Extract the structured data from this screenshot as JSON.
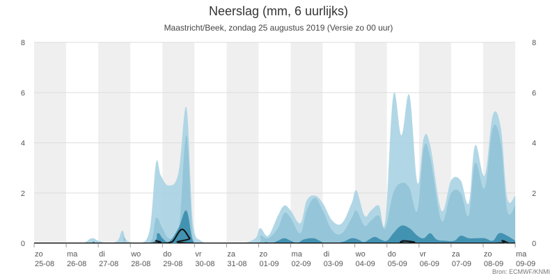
{
  "title": "Neerslag (mm, 6 uurlijks)",
  "subtitle": "Maastricht/Beek, zondag 25 augustus 2019 (Versie zo 00 uur)",
  "credit": "Bron: ECMWF/KNMI",
  "colors": {
    "band_outer": "#a9d3e3",
    "band_mid": "#8cbfd3",
    "band_inner": "#3d8fb0",
    "median_line": "#111111",
    "weekend_shade": "#efefef",
    "grid": "#dddddd"
  },
  "chart_data": {
    "type": "area",
    "title": "Neerslag (mm, 6 uurlijks)",
    "ylim": [
      0,
      8
    ],
    "yticks": [
      0,
      2,
      4,
      6,
      8
    ],
    "grid": true,
    "x_labels": [
      {
        "day": "zo",
        "date": "25-08"
      },
      {
        "day": "ma",
        "date": "26-08"
      },
      {
        "day": "di",
        "date": "27-08"
      },
      {
        "day": "wo",
        "date": "28-08"
      },
      {
        "day": "do",
        "date": "29-08"
      },
      {
        "day": "vr",
        "date": "30-08"
      },
      {
        "day": "za",
        "date": "31-08"
      },
      {
        "day": "zo",
        "date": "01-09"
      },
      {
        "day": "ma",
        "date": "02-09"
      },
      {
        "day": "di",
        "date": "03-09"
      },
      {
        "day": "wo",
        "date": "04-09"
      },
      {
        "day": "do",
        "date": "05-09"
      },
      {
        "day": "vr",
        "date": "06-09"
      },
      {
        "day": "za",
        "date": "07-09"
      },
      {
        "day": "zo",
        "date": "08-09"
      },
      {
        "day": "ma",
        "date": "09-09"
      }
    ],
    "series": [
      {
        "points": [
          [
            0,
            0
          ],
          [
            1,
            0
          ],
          [
            1.5,
            0
          ],
          [
            1.8,
            0.2
          ],
          [
            2,
            0.1
          ],
          [
            2.3,
            0
          ],
          [
            2.6,
            0.1
          ],
          [
            2.75,
            0.5
          ],
          [
            2.9,
            0.1
          ],
          [
            3.3,
            0
          ],
          [
            3.6,
            0.5
          ],
          [
            3.8,
            3.2
          ],
          [
            3.95,
            2.7
          ],
          [
            4.2,
            2.3
          ],
          [
            4.5,
            2.8
          ],
          [
            4.75,
            5.4
          ],
          [
            4.95,
            0.8
          ],
          [
            5.2,
            0.1
          ],
          [
            5.5,
            0
          ],
          [
            6,
            0
          ],
          [
            6.5,
            0
          ],
          [
            6.9,
            0.2
          ],
          [
            7.05,
            0.6
          ],
          [
            7.3,
            0.3
          ],
          [
            7.6,
            1.1
          ],
          [
            7.8,
            1.5
          ],
          [
            8,
            1.3
          ],
          [
            8.3,
            0.8
          ],
          [
            8.5,
            1.7
          ],
          [
            8.75,
            1.9
          ],
          [
            9,
            1.6
          ],
          [
            9.3,
            0.9
          ],
          [
            9.6,
            0.8
          ],
          [
            9.9,
            1.6
          ],
          [
            10.05,
            2.1
          ],
          [
            10.3,
            1.1
          ],
          [
            10.5,
            1.3
          ],
          [
            10.75,
            1.5
          ],
          [
            10.95,
            0.9
          ],
          [
            11.2,
            5.9
          ],
          [
            11.45,
            4.3
          ],
          [
            11.7,
            5.9
          ],
          [
            11.95,
            2.4
          ],
          [
            12.15,
            4.2
          ],
          [
            12.35,
            3.9
          ],
          [
            12.7,
            1.3
          ],
          [
            13,
            2.5
          ],
          [
            13.3,
            2.5
          ],
          [
            13.55,
            1.6
          ],
          [
            13.75,
            3.9
          ],
          [
            14.05,
            2.7
          ],
          [
            14.3,
            5.1
          ],
          [
            14.55,
            4.6
          ],
          [
            14.75,
            1.8
          ],
          [
            15,
            1.9
          ]
        ]
      },
      {
        "points": [
          [
            0,
            0
          ],
          [
            2.6,
            0
          ],
          [
            2.75,
            0.3
          ],
          [
            2.9,
            0
          ],
          [
            3.6,
            0
          ],
          [
            3.8,
            1.0
          ],
          [
            4.0,
            0.6
          ],
          [
            4.2,
            0.2
          ],
          [
            4.5,
            0.4
          ],
          [
            4.75,
            4.3
          ],
          [
            4.95,
            0.2
          ],
          [
            5.2,
            0
          ],
          [
            6.9,
            0
          ],
          [
            7.05,
            0.3
          ],
          [
            7.3,
            0.2
          ],
          [
            7.6,
            0.6
          ],
          [
            7.8,
            1.2
          ],
          [
            8,
            1.0
          ],
          [
            8.3,
            0.4
          ],
          [
            8.5,
            1.3
          ],
          [
            8.75,
            1.8
          ],
          [
            9,
            1.3
          ],
          [
            9.3,
            0.5
          ],
          [
            9.6,
            0.4
          ],
          [
            9.9,
            1.0
          ],
          [
            10.05,
            1.3
          ],
          [
            10.3,
            0.7
          ],
          [
            10.5,
            0.9
          ],
          [
            10.75,
            1.1
          ],
          [
            10.95,
            0.6
          ],
          [
            11.2,
            2.0
          ],
          [
            11.45,
            2.4
          ],
          [
            11.7,
            2.2
          ],
          [
            11.95,
            1.3
          ],
          [
            12.15,
            3.8
          ],
          [
            12.35,
            3.4
          ],
          [
            12.7,
            0.9
          ],
          [
            13,
            2.0
          ],
          [
            13.3,
            2.0
          ],
          [
            13.55,
            1.1
          ],
          [
            13.75,
            3.2
          ],
          [
            14.05,
            2.2
          ],
          [
            14.3,
            4.6
          ],
          [
            14.55,
            4.0
          ],
          [
            14.75,
            1.3
          ],
          [
            15,
            1.5
          ]
        ]
      },
      {
        "points": [
          [
            0,
            0
          ],
          [
            1.7,
            0
          ],
          [
            1.85,
            0.08
          ],
          [
            2,
            0
          ],
          [
            3.6,
            0
          ],
          [
            3.85,
            0.4
          ],
          [
            4.0,
            0.2
          ],
          [
            4.2,
            0.05
          ],
          [
            4.5,
            0.6
          ],
          [
            4.75,
            1.3
          ],
          [
            4.95,
            0.1
          ],
          [
            5.2,
            0
          ],
          [
            7,
            0
          ],
          [
            7.2,
            0.05
          ],
          [
            7.4,
            0
          ],
          [
            7.6,
            0.1
          ],
          [
            7.8,
            0.2
          ],
          [
            8,
            0.1
          ],
          [
            8.2,
            0
          ],
          [
            8.4,
            0.15
          ],
          [
            8.7,
            0.2
          ],
          [
            8.9,
            0.1
          ],
          [
            9.1,
            0
          ],
          [
            9.6,
            0.05
          ],
          [
            9.9,
            0.2
          ],
          [
            10.1,
            0.15
          ],
          [
            10.3,
            0.05
          ],
          [
            10.6,
            0.25
          ],
          [
            10.8,
            0.15
          ],
          [
            11,
            0.1
          ],
          [
            11.2,
            0.4
          ],
          [
            11.45,
            0.7
          ],
          [
            11.7,
            0.6
          ],
          [
            11.95,
            0.3
          ],
          [
            12.15,
            0.2
          ],
          [
            12.35,
            0.4
          ],
          [
            12.55,
            0.15
          ],
          [
            12.8,
            0.1
          ],
          [
            13.1,
            0.1
          ],
          [
            13.3,
            0.3
          ],
          [
            13.55,
            0.2
          ],
          [
            13.8,
            0.2
          ],
          [
            14.05,
            0.2
          ],
          [
            14.3,
            0.1
          ],
          [
            14.5,
            0.4
          ],
          [
            14.75,
            0.3
          ],
          [
            15,
            0.1
          ]
        ]
      },
      {
        "points": [
          [
            0,
            0
          ],
          [
            3.6,
            0
          ],
          [
            3.8,
            0.1
          ],
          [
            4.0,
            0
          ],
          [
            4.3,
            0.05
          ],
          [
            4.6,
            0.55
          ],
          [
            4.85,
            0.2
          ],
          [
            5.0,
            0
          ],
          [
            11.3,
            0
          ],
          [
            11.5,
            0.1
          ],
          [
            11.7,
            0
          ],
          [
            14.4,
            0
          ],
          [
            14.6,
            0.1
          ],
          [
            14.8,
            0
          ],
          [
            15,
            0
          ]
        ]
      }
    ]
  }
}
